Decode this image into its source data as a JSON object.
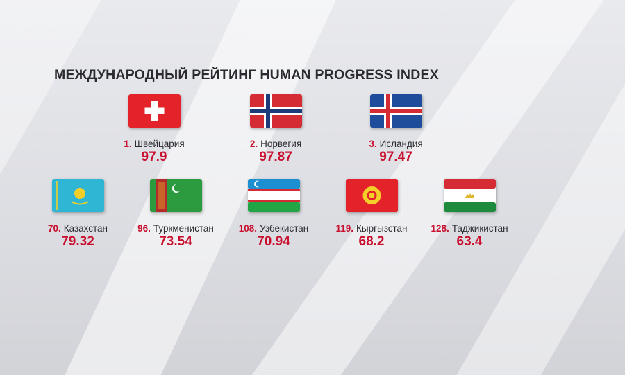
{
  "title": "МЕЖДУНАРОДНЫЙ РЕЙТИНГ HUMAN PROGRESS INDEX",
  "items": [
    {
      "rank": "1.",
      "name": "Швейцария",
      "score": 97.9
    },
    {
      "rank": "2.",
      "name": "Норвегия",
      "score": 97.87
    },
    {
      "rank": "3.",
      "name": "Исландия",
      "score": 97.47
    },
    {
      "rank": "70.",
      "name": "Казахстан",
      "score": 79.32
    },
    {
      "rank": "96.",
      "name": "Туркменистан",
      "score": 73.54
    },
    {
      "rank": "108.",
      "name": "Узбекистан",
      "score": 70.94
    },
    {
      "rank": "119.",
      "name": "Кыргызстан",
      "score": 68.2
    },
    {
      "rank": "128.",
      "name": "Таджикистан",
      "score": 63.4
    }
  ]
}
